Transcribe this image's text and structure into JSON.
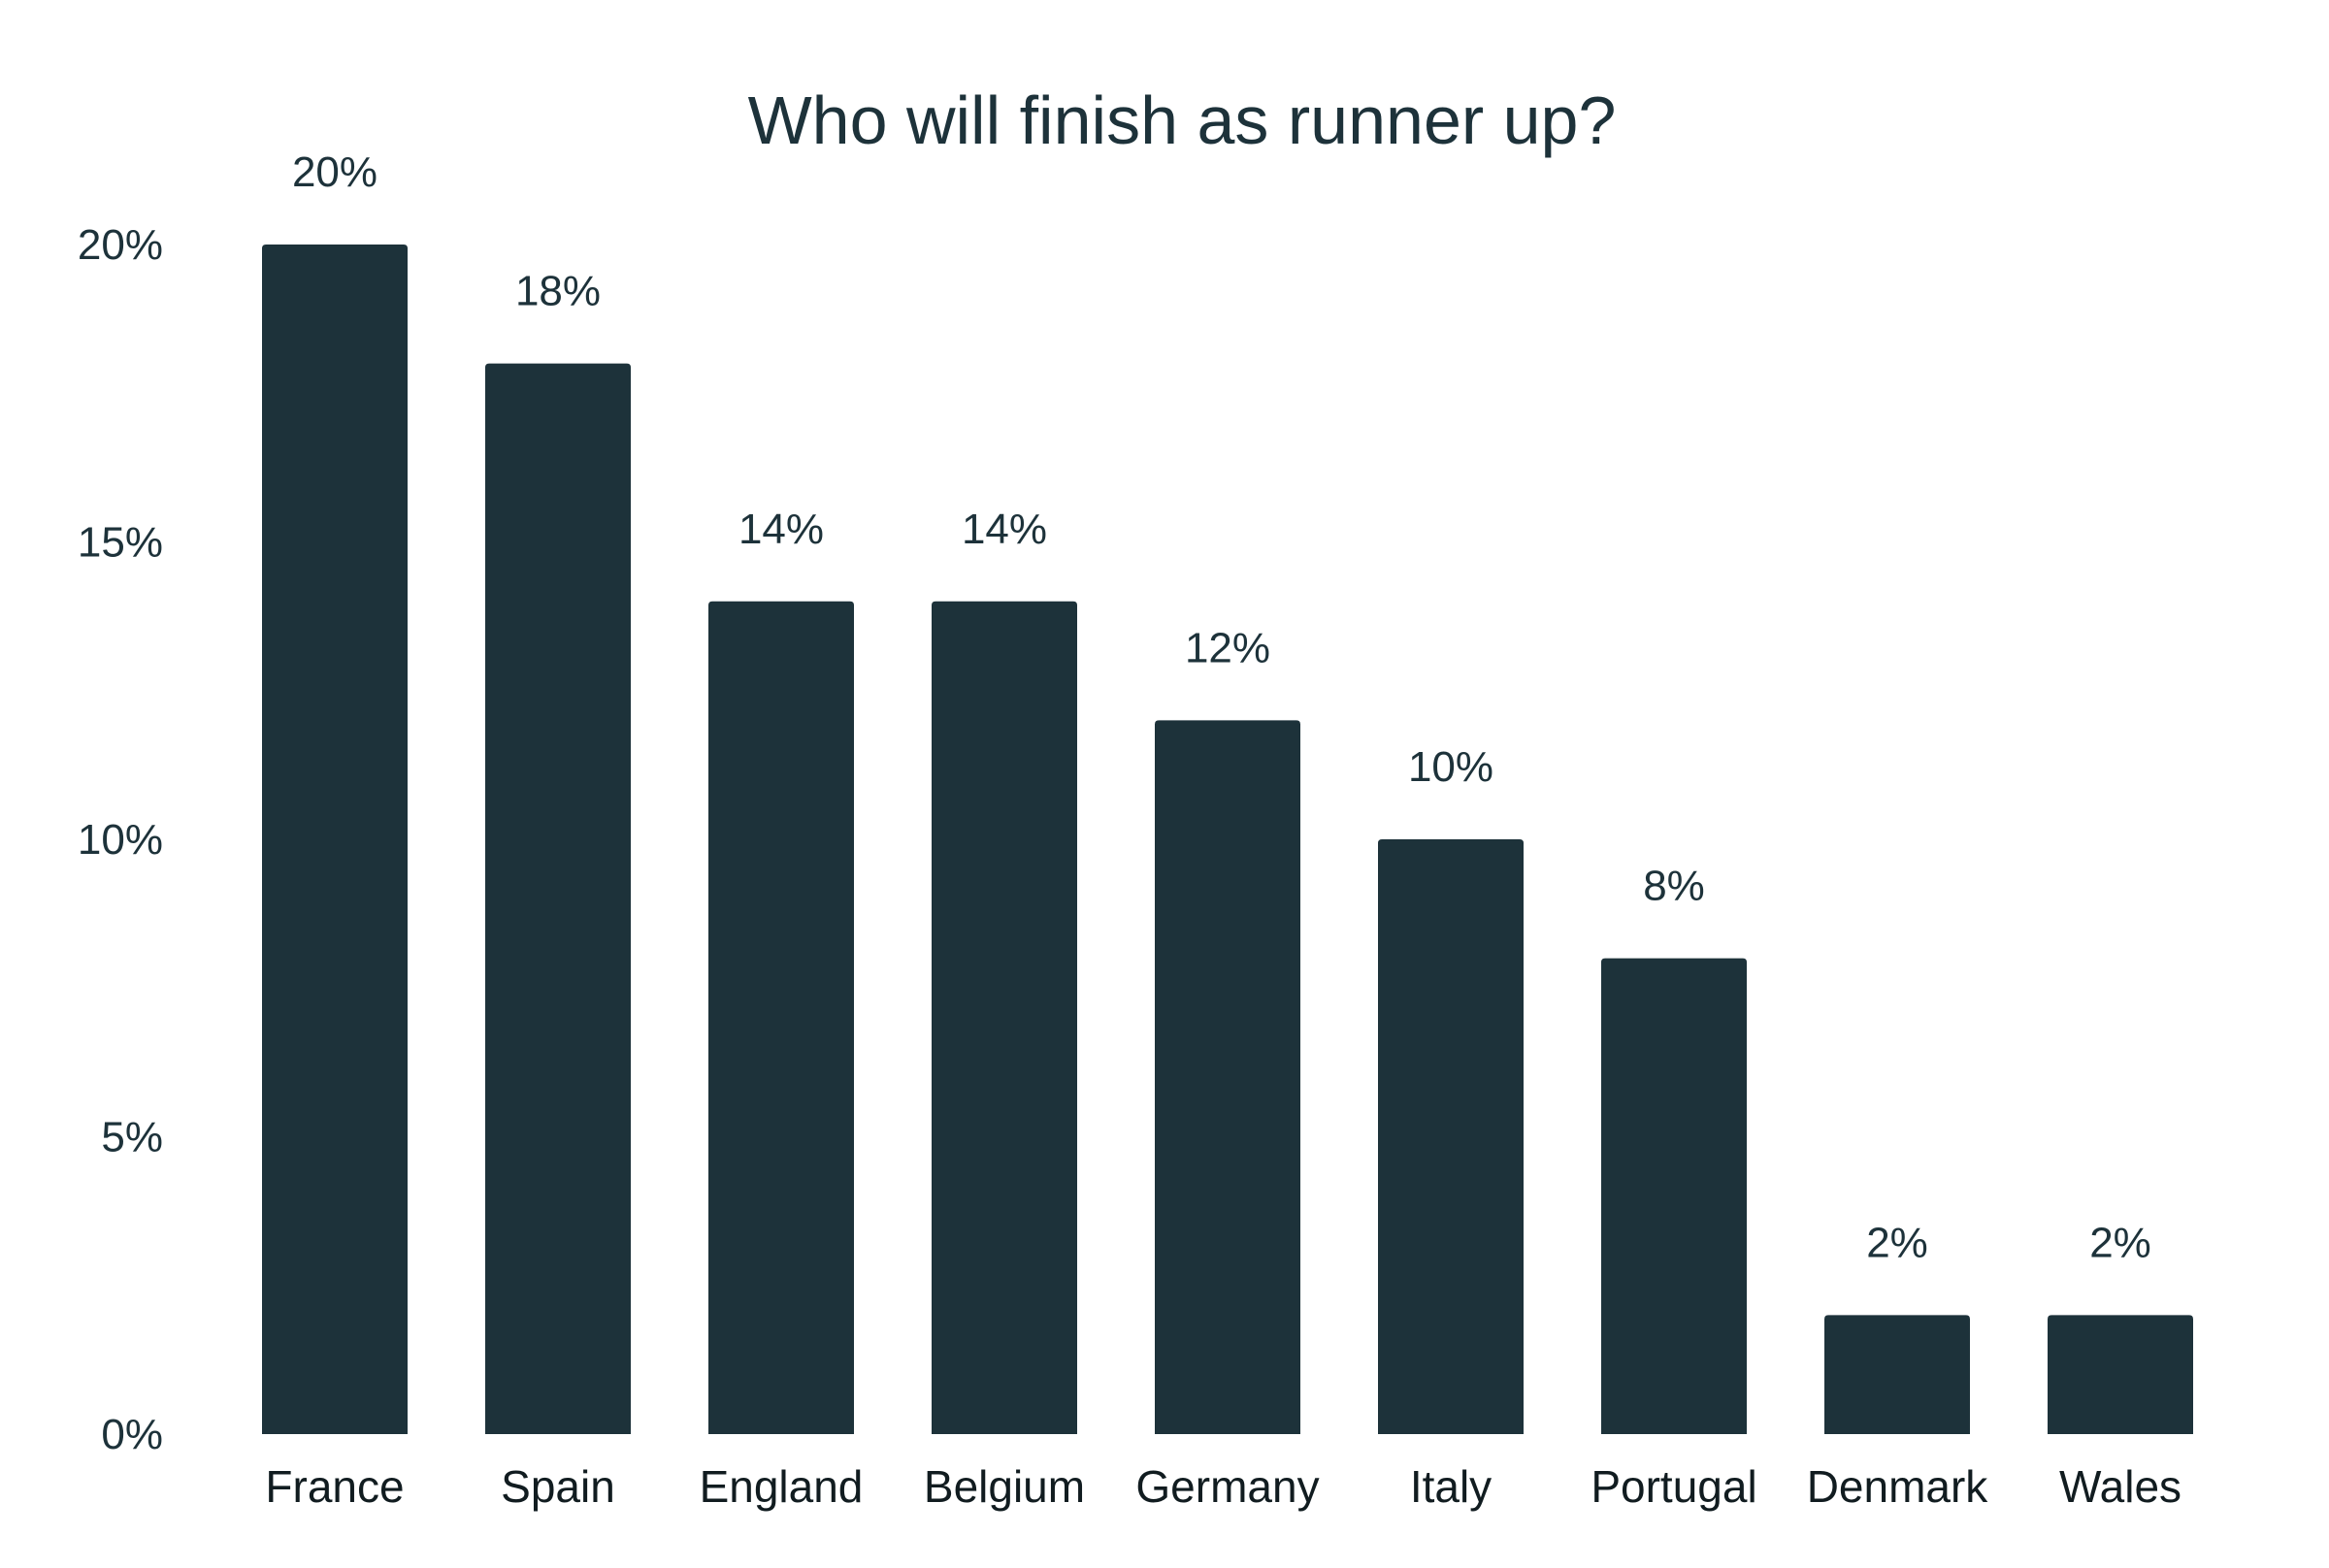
{
  "chart_data": {
    "type": "bar",
    "title": "Who will finish as runner up?",
    "xlabel": "",
    "ylabel": "",
    "categories": [
      "France",
      "Spain",
      "England",
      "Belgium",
      "Germany",
      "Italy",
      "Portugal",
      "Denmark",
      "Wales"
    ],
    "values": [
      20,
      18,
      14,
      14,
      12,
      10,
      8,
      2,
      2
    ],
    "data_labels": [
      "20%",
      "18%",
      "14%",
      "14%",
      "12%",
      "10%",
      "8%",
      "2%",
      "2%"
    ],
    "ylim": [
      0,
      20
    ],
    "yticks": [
      0,
      5,
      10,
      15,
      20
    ],
    "ytick_labels": [
      "0%",
      "5%",
      "10%",
      "15%",
      "20%"
    ],
    "grid": false,
    "legend": "none",
    "colors": {
      "bar": "#1d323a",
      "text": "#1d323a",
      "background": "#ffffff"
    }
  }
}
